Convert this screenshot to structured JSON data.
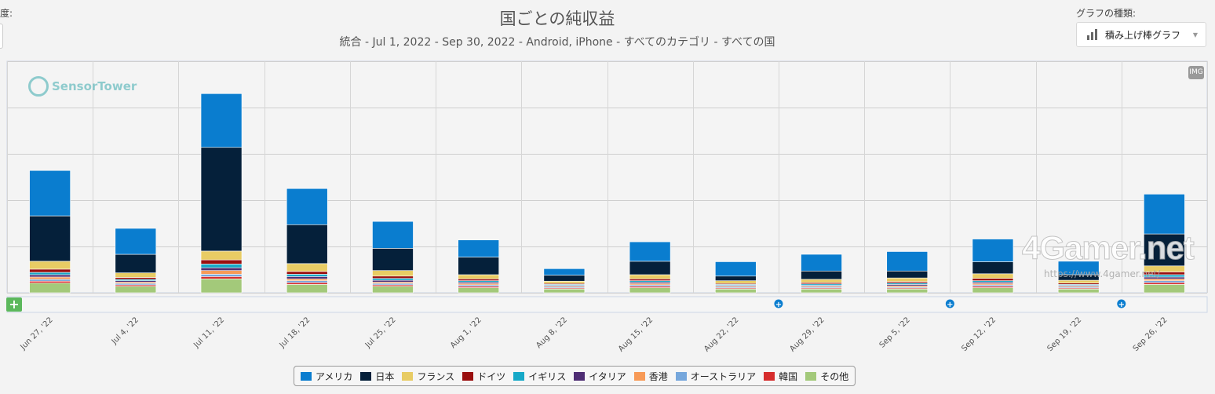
{
  "header": {
    "left_cut_label": "度:",
    "title": "国ごとの純収益",
    "subtitle": "統合 - Jul 1, 2022 - Sep 30, 2022 - Android, iPhone - すべてのカテゴリ - すべての国",
    "chart_type_label": "グラフの種類:",
    "chart_type_value": "積み上げ棒グラフ"
  },
  "watermark": {
    "brand": "SensorTower",
    "img_button": "IMG",
    "site": "4Gamer.net",
    "site_url": "https://www.4gamer.net/"
  },
  "controls": {
    "expand": "+",
    "annotation_marker": "+"
  },
  "annotations_at": [
    "Aug 22, '22",
    "Sep 5, '22",
    "Sep 19, '22"
  ],
  "chart_data": {
    "type": "bar",
    "stacked": true,
    "title": "国ごとの純収益",
    "subtitle": "統合 - Jul 1, 2022 - Sep 30, 2022 - Android, iPhone - すべてのカテゴリ - すべての国",
    "ylim": [
      0,
      5
    ],
    "y_tick_labels_visible": false,
    "grid": true,
    "legend_position": "bottom",
    "categories": [
      "Jun 27, '22",
      "Jul 4, '22",
      "Jul 11, '22",
      "Jul 18, '22",
      "Jul 25, '22",
      "Aug 1, '22",
      "Aug 8, '22",
      "Aug 15, '22",
      "Aug 22, '22",
      "Aug 29, '22",
      "Sep 5, '22",
      "Sep 12, '22",
      "Sep 19, '22",
      "Sep 26, '22"
    ],
    "series": [
      {
        "name": "その他",
        "color": "#a3c97a",
        "values": [
          0.21,
          0.14,
          0.3,
          0.18,
          0.14,
          0.11,
          0.08,
          0.11,
          0.08,
          0.08,
          0.08,
          0.11,
          0.08,
          0.18
        ]
      },
      {
        "name": "韓国",
        "color": "#d62d2d",
        "values": [
          0.04,
          0.03,
          0.05,
          0.04,
          0.03,
          0.03,
          0.02,
          0.03,
          0.02,
          0.02,
          0.02,
          0.03,
          0.02,
          0.04
        ]
      },
      {
        "name": "オーストラリア",
        "color": "#76a7dc",
        "values": [
          0.04,
          0.03,
          0.05,
          0.04,
          0.03,
          0.03,
          0.02,
          0.03,
          0.02,
          0.02,
          0.02,
          0.03,
          0.02,
          0.04
        ]
      },
      {
        "name": "香港",
        "color": "#f79a57",
        "values": [
          0.05,
          0.03,
          0.08,
          0.04,
          0.03,
          0.03,
          0.02,
          0.03,
          0.02,
          0.02,
          0.03,
          0.03,
          0.02,
          0.04
        ]
      },
      {
        "name": "イタリア",
        "color": "#4e2d74",
        "values": [
          0.05,
          0.03,
          0.06,
          0.05,
          0.04,
          0.03,
          0.02,
          0.03,
          0.02,
          0.02,
          0.03,
          0.03,
          0.02,
          0.04
        ]
      },
      {
        "name": "イギリス",
        "color": "#16a9c8",
        "values": [
          0.05,
          0.03,
          0.08,
          0.05,
          0.04,
          0.03,
          0.02,
          0.03,
          0.02,
          0.03,
          0.03,
          0.03,
          0.02,
          0.05
        ]
      },
      {
        "name": "ドイツ",
        "color": "#9a0f0f",
        "values": [
          0.07,
          0.04,
          0.09,
          0.06,
          0.05,
          0.04,
          0.02,
          0.04,
          0.02,
          0.03,
          0.03,
          0.05,
          0.03,
          0.06
        ]
      },
      {
        "name": "フランス",
        "color": "#e8cc64",
        "values": [
          0.17,
          0.1,
          0.19,
          0.17,
          0.12,
          0.09,
          0.05,
          0.09,
          0.06,
          0.07,
          0.08,
          0.1,
          0.06,
          0.13
        ]
      },
      {
        "name": "日本",
        "color": "#05203a",
        "values": [
          0.98,
          0.4,
          2.24,
          0.84,
          0.48,
          0.38,
          0.13,
          0.29,
          0.1,
          0.18,
          0.15,
          0.26,
          0.12,
          0.69
        ]
      },
      {
        "name": "アメリカ",
        "color": "#0a7dcf",
        "values": [
          0.98,
          0.56,
          1.16,
          0.78,
          0.58,
          0.37,
          0.14,
          0.42,
          0.31,
          0.36,
          0.42,
          0.49,
          0.29,
          0.86
        ]
      }
    ]
  },
  "legend": [
    {
      "label": "アメリカ",
      "color": "#0a7dcf"
    },
    {
      "label": "日本",
      "color": "#05203a"
    },
    {
      "label": "フランス",
      "color": "#e8cc64"
    },
    {
      "label": "ドイツ",
      "color": "#9a0f0f"
    },
    {
      "label": "イギリス",
      "color": "#16a9c8"
    },
    {
      "label": "イタリア",
      "color": "#4e2d74"
    },
    {
      "label": "香港",
      "color": "#f79a57"
    },
    {
      "label": "オーストラリア",
      "color": "#76a7dc"
    },
    {
      "label": "韓国",
      "color": "#d62d2d"
    },
    {
      "label": "その他",
      "color": "#a3c97a"
    }
  ]
}
